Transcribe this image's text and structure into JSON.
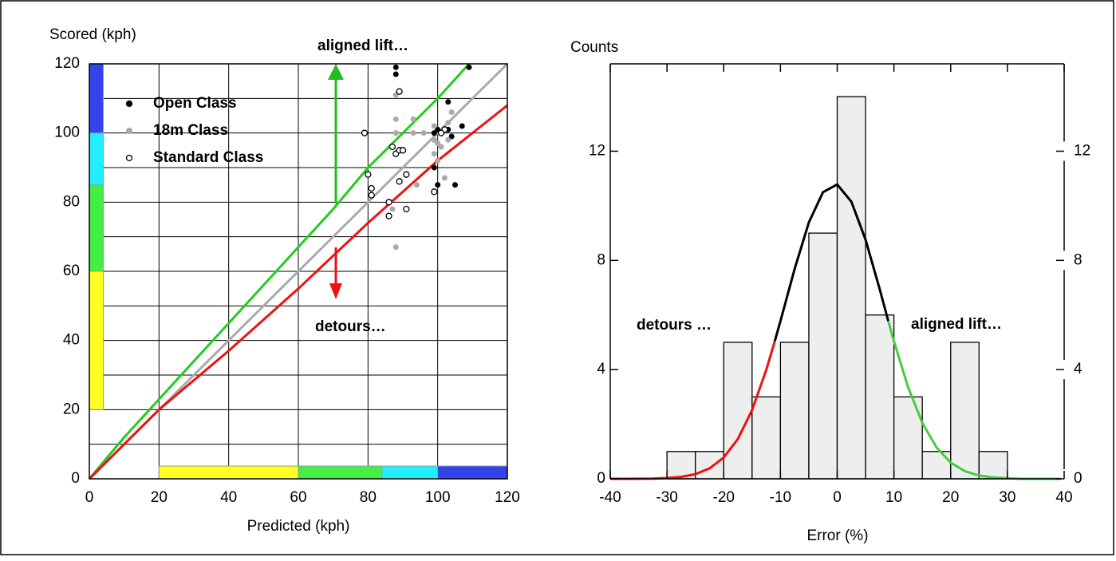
{
  "chart_data": [
    {
      "type": "scatter",
      "ylabel": "Scored (kph)",
      "xlabel": "Predicted (kph)",
      "xlim": [
        0,
        120
      ],
      "ylim": [
        0,
        120
      ],
      "xticks": [
        0,
        20,
        40,
        60,
        80,
        100,
        120
      ],
      "yticks": [
        0,
        20,
        40,
        60,
        80,
        100,
        120
      ],
      "minor_ygrid": [
        10,
        30,
        50,
        70,
        90,
        110
      ],
      "grid": true,
      "legend": "upper-left",
      "x_bands": [
        {
          "from": 20,
          "to": 60,
          "color": "#ffff22"
        },
        {
          "from": 60,
          "to": 84,
          "color": "#44ee44"
        },
        {
          "from": 84,
          "to": 100,
          "color": "#22eeff"
        },
        {
          "from": 100,
          "to": 120,
          "color": "#3344ee"
        }
      ],
      "y_bands": [
        {
          "from": 20,
          "to": 60,
          "color": "#ffff22"
        },
        {
          "from": 60,
          "to": 85,
          "color": "#44ee44"
        },
        {
          "from": 85,
          "to": 100,
          "color": "#22eeff"
        },
        {
          "from": 100,
          "to": 120,
          "color": "#3344ee"
        }
      ],
      "lines": [
        {
          "color": "#22cc22",
          "x": [
            0,
            10,
            20,
            30,
            40,
            50,
            60,
            70,
            80,
            90,
            100,
            109
          ],
          "values": [
            0,
            12,
            23,
            34,
            45,
            56,
            67,
            78,
            90,
            100,
            110,
            120
          ]
        },
        {
          "color": "#aaaaaa",
          "x": [
            0,
            20,
            40,
            60,
            80,
            100,
            120
          ],
          "values": [
            0,
            20,
            40,
            60,
            80,
            100,
            120
          ]
        },
        {
          "color": "#ee1111",
          "x": [
            0,
            20,
            40,
            60,
            80,
            100,
            120
          ],
          "values": [
            0,
            20,
            37,
            55,
            74,
            92,
            108
          ]
        }
      ],
      "annotations": [
        {
          "text": "aligned lift…",
          "color": "#44cc44"
        },
        {
          "text": "detours…",
          "color": "#ee1111"
        }
      ],
      "series": [
        {
          "name": "Open Class",
          "color": "#000000",
          "marker": "filled",
          "x": [
            88,
            88,
            109,
            107,
            103,
            103,
            104,
            100,
            101,
            99,
            102,
            99,
            100,
            105
          ],
          "values": [
            119,
            117,
            119,
            102,
            109,
            101,
            99,
            101,
            100,
            100,
            101,
            90,
            85,
            85
          ]
        },
        {
          "name": "18m Class",
          "color": "#aaaaaa",
          "marker": "filled",
          "x": [
            88,
            88,
            88,
            87,
            93,
            94,
            96,
            99,
            99,
            100,
            100,
            102,
            103,
            104,
            103,
            99,
            101,
            88,
            93
          ],
          "values": [
            111,
            104,
            67,
            78,
            104,
            85,
            100,
            98,
            94,
            92,
            97,
            87,
            103,
            106,
            98,
            102,
            96,
            100,
            100
          ]
        },
        {
          "name": "Standard Class",
          "color": "#000000",
          "marker": "open",
          "x": [
            79,
            80,
            81,
            81,
            86,
            86,
            87,
            88,
            89,
            89,
            90,
            89,
            91,
            91,
            99,
            102,
            101
          ],
          "values": [
            100,
            88,
            84,
            82,
            80,
            76,
            96,
            94,
            112,
            95,
            95,
            86,
            88,
            78,
            83,
            101,
            100
          ]
        }
      ]
    },
    {
      "type": "histogram",
      "ylabel": "Counts",
      "xlabel": "Error (%)",
      "xlim": [
        -40,
        40
      ],
      "ylim": [
        0,
        15.2
      ],
      "y2lim": [
        0,
        15.2
      ],
      "xticks": [
        -40,
        -30,
        -20,
        -10,
        0,
        10,
        20,
        30,
        40
      ],
      "yticks": [
        0,
        4,
        8,
        12
      ],
      "y2ticks": [
        0,
        4,
        8,
        12
      ],
      "bins": [
        -30,
        -25,
        -20,
        -15,
        -10,
        -5,
        0,
        5,
        10,
        15,
        20,
        25,
        30
      ],
      "counts": [
        1,
        1,
        5,
        3,
        5,
        9,
        14,
        6,
        3,
        1,
        5,
        1
      ],
      "bar_color": "#eeeeee",
      "curves": [
        {
          "color": "#ee1111",
          "x": [
            -40,
            -37.5,
            -35,
            -32.5,
            -30,
            -27.5,
            -25,
            -22.5,
            -20,
            -17.5,
            -15,
            -12.5,
            -11
          ],
          "values": [
            0,
            0,
            0.003,
            0.009,
            0.03,
            0.07,
            0.17,
            0.38,
            0.78,
            1.46,
            2.52,
            3.99,
            5.04
          ]
        },
        {
          "color": "#000000",
          "x": [
            -11,
            -10,
            -7.5,
            -5,
            -2.5,
            0,
            2.5,
            5,
            7.5,
            9
          ],
          "values": [
            5.04,
            5.78,
            7.69,
            9.39,
            10.5,
            10.78,
            10.15,
            8.76,
            6.94,
            5.78
          ]
        },
        {
          "color": "#44cc44",
          "x": [
            9,
            10,
            12.5,
            15,
            17.5,
            20,
            22.5,
            25,
            27.5,
            30,
            32.5,
            35,
            40
          ],
          "values": [
            5.78,
            5.04,
            3.35,
            2.05,
            1.15,
            0.59,
            0.28,
            0.12,
            0.05,
            0.02,
            0,
            0,
            0
          ]
        }
      ],
      "annotations": [
        {
          "text": "detours …",
          "color": "#ee1111"
        },
        {
          "text": "aligned lift…",
          "color": "#44cc44"
        }
      ]
    }
  ]
}
